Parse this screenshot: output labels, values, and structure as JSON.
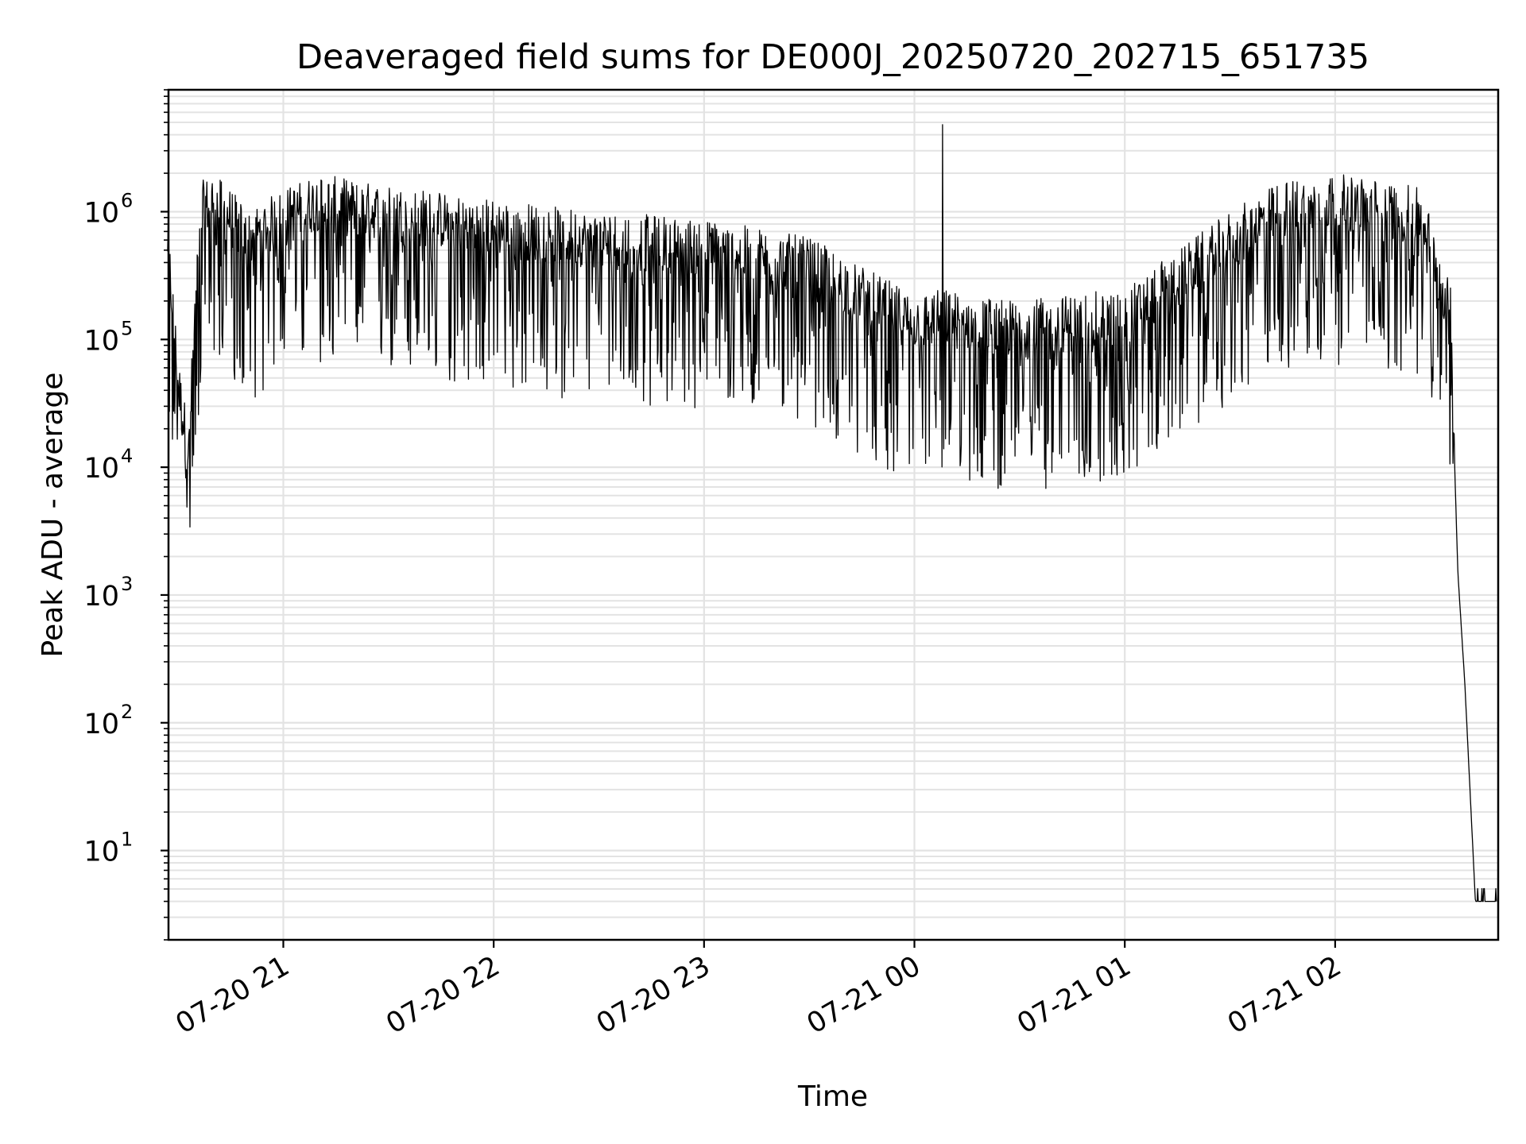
{
  "chart_data": {
    "type": "line",
    "title": "Deaveraged field sums for DE000J_20250720_202715_651735",
    "xlabel": "Time",
    "ylabel": "Peak ADU - average",
    "yscale": "log",
    "ylim": [
      2,
      9000000
    ],
    "xlim": [
      "2025-07-20 20:27:15",
      "2025-07-21 02:46:30"
    ],
    "grid": true,
    "x_ticks": [
      {
        "label": "07-20 21",
        "t": "2025-07-20 21:00"
      },
      {
        "label": "07-20 22",
        "t": "2025-07-20 22:00"
      },
      {
        "label": "07-20 23",
        "t": "2025-07-20 23:00"
      },
      {
        "label": "07-21 00",
        "t": "2025-07-21 00:00"
      },
      {
        "label": "07-21 01",
        "t": "2025-07-21 01:00"
      },
      {
        "label": "07-21 02",
        "t": "2025-07-21 02:00"
      }
    ],
    "y_ticks": [
      {
        "base": "10",
        "exp": "1",
        "value": 10
      },
      {
        "base": "10",
        "exp": "2",
        "value": 100
      },
      {
        "base": "10",
        "exp": "3",
        "value": 1000
      },
      {
        "base": "10",
        "exp": "4",
        "value": 10000
      },
      {
        "base": "10",
        "exp": "5",
        "value": 100000
      },
      {
        "base": "10",
        "exp": "6",
        "value": 1000000
      }
    ],
    "series": [
      {
        "color": "#000000",
        "x": [
          "2025-07-20 20:27",
          "2025-07-20 20:30",
          "2025-07-20 20:33",
          "2025-07-20 20:35",
          "2025-07-20 20:37",
          "2025-07-20 20:40",
          "2025-07-20 20:45",
          "2025-07-20 20:50",
          "2025-07-20 20:55",
          "2025-07-20 21:00",
          "2025-07-20 21:10",
          "2025-07-20 21:20",
          "2025-07-20 21:30",
          "2025-07-20 21:40",
          "2025-07-20 21:50",
          "2025-07-20 22:00",
          "2025-07-20 22:15",
          "2025-07-20 22:30",
          "2025-07-20 22:45",
          "2025-07-20 23:00",
          "2025-07-20 23:15",
          "2025-07-20 23:30",
          "2025-07-20 23:45",
          "2025-07-21 00:00",
          "2025-07-21 00:08",
          "2025-07-21 00:15",
          "2025-07-21 00:30",
          "2025-07-21 00:45",
          "2025-07-21 01:00",
          "2025-07-21 01:15",
          "2025-07-21 01:30",
          "2025-07-21 01:45",
          "2025-07-21 02:00",
          "2025-07-21 02:15",
          "2025-07-21 02:25",
          "2025-07-21 02:33",
          "2025-07-21 02:35",
          "2025-07-21 02:37",
          "2025-07-21 02:40",
          "2025-07-21 02:46"
        ],
        "y": [
          400000,
          30000,
          8000,
          150000,
          700000,
          800000,
          600000,
          400000,
          500000,
          600000,
          800000,
          700000,
          650000,
          600000,
          550000,
          500000,
          450000,
          400000,
          380000,
          350000,
          300000,
          250000,
          150000,
          90000,
          100000,
          90000,
          80000,
          90000,
          100000,
          200000,
          400000,
          700000,
          800000,
          700000,
          600000,
          100000,
          1500,
          200,
          4,
          4
        ]
      }
    ]
  }
}
